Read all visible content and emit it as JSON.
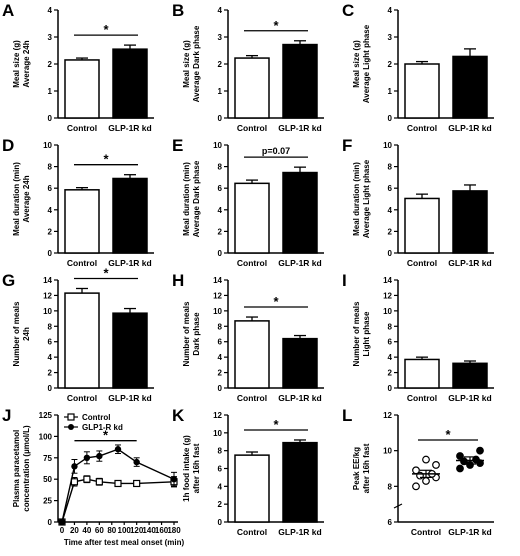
{
  "chart_data": [
    {
      "id": "A",
      "panel_label": "A",
      "type": "bar",
      "categories": [
        "Control",
        "GLP-1R kd"
      ],
      "values": [
        2.15,
        2.55
      ],
      "errors": [
        0.07,
        0.15
      ],
      "ylabel": [
        "Meal size (g)",
        "Average 24h"
      ],
      "ylim": [
        0,
        4
      ],
      "yticks": [
        0,
        1,
        2,
        3,
        4
      ],
      "significance": "*",
      "colors": [
        "#ffffff",
        "#000000"
      ]
    },
    {
      "id": "B",
      "panel_label": "B",
      "type": "bar",
      "categories": [
        "Control",
        "GLP-1R kd"
      ],
      "values": [
        2.22,
        2.72
      ],
      "errors": [
        0.09,
        0.14
      ],
      "ylabel": [
        "Meal size (g)",
        "Average Dark phase"
      ],
      "ylim": [
        0,
        4
      ],
      "yticks": [
        0,
        1,
        2,
        3,
        4
      ],
      "significance": "*",
      "colors": [
        "#ffffff",
        "#000000"
      ]
    },
    {
      "id": "C",
      "panel_label": "C",
      "type": "bar",
      "categories": [
        "Control",
        "GLP-1R kd"
      ],
      "values": [
        2.0,
        2.28
      ],
      "errors": [
        0.09,
        0.28
      ],
      "ylabel": [
        "Meal size (g)",
        "Average Light phase"
      ],
      "ylim": [
        0,
        4
      ],
      "yticks": [
        0,
        1,
        2,
        3,
        4
      ],
      "significance": "",
      "colors": [
        "#ffffff",
        "#000000"
      ]
    },
    {
      "id": "D",
      "panel_label": "D",
      "type": "bar",
      "categories": [
        "Control",
        "GLP-1R kd"
      ],
      "values": [
        5.85,
        6.9
      ],
      "errors": [
        0.2,
        0.35
      ],
      "ylabel": [
        "Meal duration (min)",
        "Average 24h"
      ],
      "ylim": [
        0,
        10
      ],
      "yticks": [
        0,
        2,
        4,
        6,
        8,
        10
      ],
      "significance": "*",
      "colors": [
        "#ffffff",
        "#000000"
      ]
    },
    {
      "id": "E",
      "panel_label": "E",
      "type": "bar",
      "categories": [
        "Control",
        "GLP-1R kd"
      ],
      "values": [
        6.45,
        7.45
      ],
      "errors": [
        0.3,
        0.5
      ],
      "ylabel": [
        "Meal duration (min)",
        "Average Dark phase"
      ],
      "ylim": [
        0,
        10
      ],
      "yticks": [
        0,
        2,
        4,
        6,
        8,
        10
      ],
      "significance": "p=0.07",
      "colors": [
        "#ffffff",
        "#000000"
      ]
    },
    {
      "id": "F",
      "panel_label": "F",
      "type": "bar",
      "categories": [
        "Control",
        "GLP-1R kd"
      ],
      "values": [
        5.05,
        5.75
      ],
      "errors": [
        0.4,
        0.55
      ],
      "ylabel": [
        "Meal duration (min)",
        "Average Light phase"
      ],
      "ylim": [
        0,
        10
      ],
      "yticks": [
        0,
        2,
        4,
        6,
        8,
        10
      ],
      "significance": "",
      "colors": [
        "#ffffff",
        "#000000"
      ]
    },
    {
      "id": "G",
      "panel_label": "G",
      "type": "bar",
      "categories": [
        "Control",
        "GLP-1R kd"
      ],
      "values": [
        12.3,
        9.7
      ],
      "errors": [
        0.6,
        0.6
      ],
      "ylabel": [
        "Number of meals",
        "24h"
      ],
      "ylim": [
        0,
        14
      ],
      "yticks": [
        0,
        2,
        4,
        6,
        8,
        10,
        12,
        14
      ],
      "significance": "*",
      "colors": [
        "#ffffff",
        "#000000"
      ]
    },
    {
      "id": "H",
      "panel_label": "H",
      "type": "bar",
      "categories": [
        "Control",
        "GLP-1R kd"
      ],
      "values": [
        8.7,
        6.4
      ],
      "errors": [
        0.5,
        0.4
      ],
      "ylabel": [
        "Number of meals",
        "Dark phase"
      ],
      "ylim": [
        0,
        14
      ],
      "yticks": [
        0,
        2,
        4,
        6,
        8,
        10,
        12,
        14
      ],
      "significance": "*",
      "colors": [
        "#ffffff",
        "#000000"
      ]
    },
    {
      "id": "I",
      "panel_label": "I",
      "type": "bar",
      "categories": [
        "Control",
        "GLP-1R kd"
      ],
      "values": [
        3.7,
        3.2
      ],
      "errors": [
        0.3,
        0.3
      ],
      "ylabel": [
        "Number of meals",
        "Light phase"
      ],
      "ylim": [
        0,
        14
      ],
      "yticks": [
        0,
        2,
        4,
        6,
        8,
        10,
        12,
        14
      ],
      "significance": "",
      "colors": [
        "#ffffff",
        "#000000"
      ]
    },
    {
      "id": "J",
      "panel_label": "J",
      "type": "line",
      "x": [
        0,
        20,
        40,
        60,
        90,
        120,
        180
      ],
      "series": [
        {
          "name": "Control",
          "marker": "open-square",
          "values": [
            0,
            47,
            50,
            47,
            45,
            45,
            47
          ],
          "errors": [
            0,
            5,
            4,
            4,
            3,
            3,
            6
          ]
        },
        {
          "name": "GLP1-R kd",
          "marker": "filled-circle",
          "values": [
            0,
            65,
            75,
            77,
            85,
            70,
            50
          ],
          "errors": [
            0,
            8,
            7,
            6,
            5,
            5,
            8
          ]
        }
      ],
      "ylabel": [
        "Plasma paracetamol",
        "concentration (µmol/L)"
      ],
      "xlabel": "Time after test meal onset (min)",
      "xlim": [
        0,
        180
      ],
      "xticks": [
        0,
        20,
        40,
        60,
        80,
        100,
        120,
        140,
        160,
        180
      ],
      "ylim": [
        0,
        125
      ],
      "yticks": [
        0,
        25,
        50,
        75,
        100,
        125
      ],
      "significance": "*",
      "sig_range": [
        20,
        120
      ],
      "legend": "top-left"
    },
    {
      "id": "K",
      "panel_label": "K",
      "type": "bar",
      "categories": [
        "Control",
        "GLP-1R kd"
      ],
      "values": [
        7.5,
        8.9
      ],
      "errors": [
        0.35,
        0.3
      ],
      "ylabel": [
        "1h food intake (g)",
        "after 16h fast"
      ],
      "ylim": [
        0,
        12
      ],
      "yticks": [
        0,
        2,
        4,
        6,
        8,
        10,
        12
      ],
      "significance": "*",
      "colors": [
        "#ffffff",
        "#000000"
      ]
    },
    {
      "id": "L",
      "panel_label": "L",
      "type": "scatter",
      "categories": [
        "Control",
        "GLP-1R kd"
      ],
      "points": [
        [
          8.0,
          8.3,
          8.5,
          8.6,
          8.7,
          8.9,
          9.2,
          9.5
        ],
        [
          9.0,
          9.2,
          9.3,
          9.4,
          9.5,
          9.7,
          10.0
        ]
      ],
      "means": [
        8.7,
        9.45
      ],
      "errors": [
        0.2,
        0.2
      ],
      "ylabel": [
        "Peak EE/kg",
        "after 16h fast"
      ],
      "ylim": [
        6,
        12
      ],
      "yticks": [
        6,
        8,
        10,
        12
      ],
      "significance": "*"
    }
  ]
}
